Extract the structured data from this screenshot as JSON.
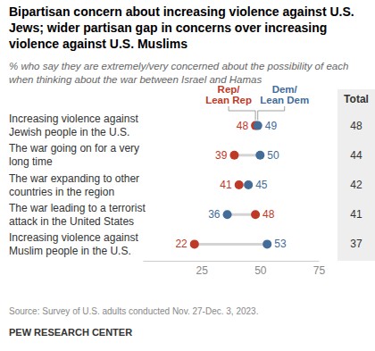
{
  "chart_data": {
    "type": "dot",
    "orientation": "horizontal",
    "title": "Bipartisan concern about increasing violence against U.S. Jews; wider partisan gap in concerns over increasing violence against U.S. Muslims",
    "subtitle": "% who say they are extremely/very concerned about the possibility of each when thinking about the war between Israel and Hamas",
    "categories": [
      "Increasing violence against Jewish people in the U.S.",
      "The war going on for a very long time",
      "The war expanding to other countries in the region",
      "The war leading to a terrorist attack in the United States",
      "Increasing violence against Muslim people in the U.S."
    ],
    "series": [
      {
        "name": "Rep/Lean Rep",
        "color": "#bf3927",
        "values": [
          48,
          39,
          41,
          48,
          22
        ]
      },
      {
        "name": "Dem/Lean Dem",
        "color": "#436c98",
        "values": [
          49,
          50,
          45,
          36,
          53
        ]
      }
    ],
    "total": {
      "label": "Total",
      "values": [
        48,
        44,
        42,
        41,
        37
      ]
    },
    "xlim": [
      0,
      75
    ],
    "xticks": [
      25,
      50,
      75
    ],
    "grid": false,
    "data_labels": true,
    "source": "Source: Survey of U.S. adults conducted Nov. 27-Dec. 3, 2023.",
    "note": "PEW RESEARCH CENTER"
  }
}
